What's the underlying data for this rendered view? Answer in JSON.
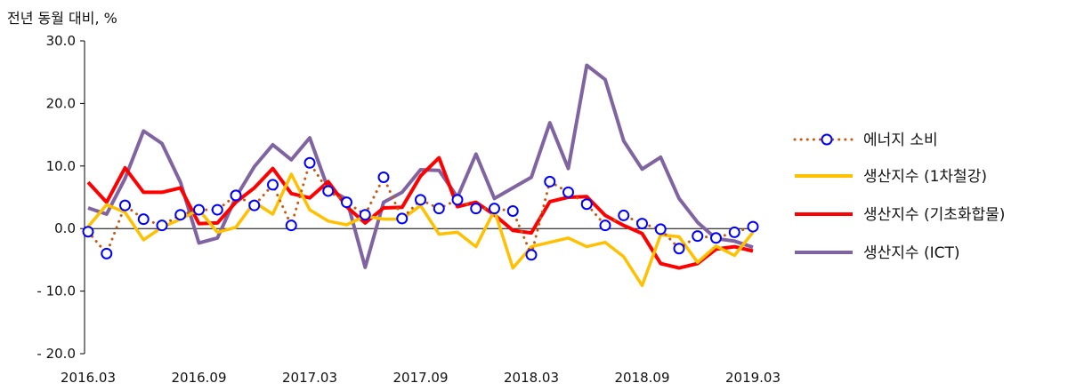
{
  "chart_data": {
    "type": "line",
    "unit_label": "전년 동월 대비, %",
    "ylim": [
      -20,
      30
    ],
    "yticks": [
      "30.0",
      "20.0",
      "10.0",
      "0.0",
      "- 10.0",
      "- 20.0"
    ],
    "ytick_values": [
      30,
      20,
      10,
      0,
      -10,
      -20
    ],
    "x": [
      "2016.03",
      "2016.04",
      "2016.05",
      "2016.06",
      "2016.07",
      "2016.08",
      "2016.09",
      "2016.10",
      "2016.11",
      "2016.12",
      "2017.01",
      "2017.02",
      "2017.03",
      "2017.04",
      "2017.05",
      "2017.06",
      "2017.07",
      "2017.08",
      "2017.09",
      "2017.10",
      "2017.11",
      "2017.12",
      "2018.01",
      "2018.02",
      "2018.03",
      "2018.04",
      "2018.05",
      "2018.06",
      "2018.07",
      "2018.08",
      "2018.09",
      "2018.10",
      "2018.11",
      "2018.12",
      "2019.01",
      "2019.02",
      "2019.03"
    ],
    "xtick_labels": [
      "2016.03",
      "2016.09",
      "2017.03",
      "2017.09",
      "2018.03",
      "2018.09",
      "2019.03"
    ],
    "grid": false,
    "legend_position": "right",
    "series": [
      {
        "name": "에너지 소비",
        "color": "#C55A11",
        "style": "dotted-circles",
        "values": [
          -0.5,
          -4.0,
          3.7,
          1.5,
          0.5,
          2.2,
          3.0,
          3.0,
          5.3,
          3.7,
          7.0,
          0.5,
          10.5,
          6.0,
          4.2,
          2.2,
          8.2,
          1.6,
          4.6,
          3.2,
          4.6,
          3.2,
          3.2,
          2.8,
          -4.2,
          7.5,
          5.8,
          3.9,
          0.5,
          2.1,
          0.8,
          -0.1,
          -3.2,
          -1.2,
          -1.5,
          -0.6,
          0.3
        ]
      },
      {
        "name": "생산지수 (1차철강)",
        "color": "#FFC000",
        "style": "line",
        "values": [
          0.3,
          3.8,
          2.6,
          -1.8,
          0.2,
          1.5,
          3.0,
          -0.6,
          0.2,
          4.2,
          2.3,
          8.7,
          3.0,
          1.2,
          0.6,
          2.0,
          1.5,
          1.5,
          3.7,
          -0.9,
          -0.6,
          -2.9,
          2.9,
          -6.3,
          -2.9,
          -2.2,
          -1.5,
          -2.9,
          -2.2,
          -4.5,
          -9.1,
          -1.0,
          -1.3,
          -5.4,
          -2.8,
          -4.3,
          -0.6
        ]
      },
      {
        "name": "생산지수 (기초화합물)",
        "color": "#FF0000",
        "style": "line",
        "values": [
          7.4,
          4.2,
          9.7,
          5.8,
          5.8,
          6.5,
          0.8,
          0.9,
          4.2,
          6.5,
          9.6,
          5.6,
          4.9,
          7.5,
          3.5,
          0.9,
          3.3,
          3.4,
          8.4,
          11.3,
          3.5,
          4.2,
          2.2,
          -0.3,
          -0.7,
          4.3,
          5.0,
          5.1,
          2.1,
          0.5,
          -0.8,
          -5.6,
          -6.3,
          -5.6,
          -3.3,
          -2.9,
          -3.6
        ]
      },
      {
        "name": "생산지수 (ICT)",
        "color": "#8064A2",
        "style": "line",
        "values": [
          3.3,
          2.3,
          8.0,
          15.6,
          13.6,
          7.4,
          -2.3,
          -1.5,
          5.0,
          9.9,
          13.4,
          11.0,
          14.5,
          6.3,
          4.7,
          -6.2,
          4.2,
          5.8,
          9.4,
          9.3,
          5.0,
          11.9,
          4.8,
          6.5,
          8.2,
          16.9,
          9.6,
          26.1,
          23.8,
          14.0,
          9.5,
          11.4,
          4.8,
          1.0,
          -1.6,
          -2.0,
          -3.0
        ]
      }
    ]
  }
}
